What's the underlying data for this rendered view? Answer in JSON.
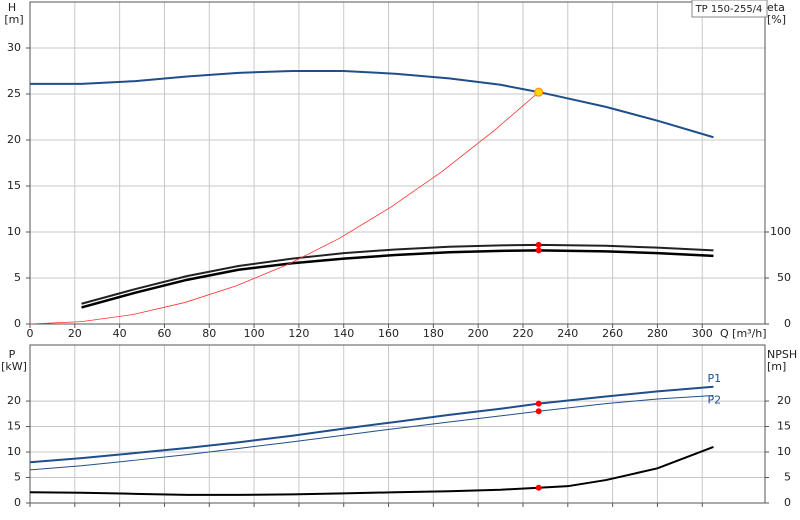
{
  "chart_data": [
    {
      "type": "line",
      "title": "TP 150-255/4",
      "y_label": "H",
      "y_unit": "[m]",
      "y2_label": "eta",
      "y2_unit": "[%]",
      "x_label": "Q [m³/h]",
      "xlim": [
        0,
        328
      ],
      "xticks": [
        0,
        20,
        40,
        60,
        80,
        100,
        120,
        140,
        160,
        180,
        200,
        220,
        240,
        260,
        280,
        300
      ],
      "ylim": [
        0,
        35
      ],
      "yticks": [
        0,
        5,
        10,
        15,
        20,
        25,
        30
      ],
      "y2lim": [
        0,
        350
      ],
      "y2ticks": [
        0,
        50,
        100
      ],
      "grid": true,
      "series": [
        {
          "color": "#1f4e8c",
          "width": 2,
          "x": [
            0,
            23,
            47,
            70,
            93,
            117,
            140,
            163,
            187,
            210,
            227,
            233,
            257,
            280,
            305
          ],
          "values": [
            26.1,
            26.1,
            26.4,
            26.9,
            27.3,
            27.5,
            27.5,
            27.2,
            26.7,
            26.0,
            25.2,
            24.9,
            23.6,
            22.1,
            20.3
          ]
        },
        {
          "color": "#222222",
          "width": 2,
          "axis": "y2",
          "x": [
            23,
            47,
            70,
            93,
            117,
            140,
            163,
            187,
            210,
            227,
            257,
            280,
            305
          ],
          "values": [
            22,
            38,
            52,
            63,
            71,
            77,
            81,
            84,
            85.5,
            86,
            85,
            83,
            80
          ]
        },
        {
          "color": "#000000",
          "width": 2.5,
          "axis": "y2",
          "x": [
            23,
            47,
            70,
            93,
            117,
            140,
            163,
            187,
            210,
            227,
            257,
            280,
            305
          ],
          "values": [
            18,
            34,
            48,
            59,
            66,
            71,
            75,
            78,
            79.5,
            80,
            79,
            77,
            74
          ]
        },
        {
          "color": "#ff3030",
          "width": 0.8,
          "x": [
            0,
            23,
            46,
            69,
            92,
            115,
            138,
            161,
            184,
            207,
            227
          ],
          "values": [
            0,
            0.26,
            1.03,
            2.33,
            4.14,
            6.47,
            9.3,
            12.7,
            16.6,
            21.0,
            25.2
          ]
        }
      ],
      "markers": [
        {
          "x": 227,
          "y": 25.2,
          "color": "#ffd700"
        },
        {
          "x": 227,
          "y": 86,
          "axis": "y2",
          "color": "#ff0000"
        },
        {
          "x": 227,
          "y": 80,
          "axis": "y2",
          "color": "#ff0000"
        }
      ]
    },
    {
      "type": "line",
      "y_label": "P",
      "y_unit": "[kW]",
      "y2_label": "NPSH",
      "y2_unit": "[m]",
      "xlim": [
        0,
        328
      ],
      "ylim": [
        0,
        31
      ],
      "yticks": [
        0,
        5,
        10,
        15,
        20
      ],
      "y2lim": [
        0,
        31
      ],
      "y2ticks": [
        0,
        5,
        10,
        15,
        20
      ],
      "grid": true,
      "series": [
        {
          "name": "P1",
          "color": "#1f4e8c",
          "width": 2,
          "x": [
            0,
            23,
            47,
            70,
            93,
            117,
            140,
            163,
            187,
            210,
            227,
            257,
            280,
            305
          ],
          "values": [
            8,
            8.8,
            9.8,
            10.8,
            11.9,
            13.2,
            14.6,
            15.9,
            17.3,
            18.5,
            19.5,
            20.9,
            21.9,
            22.8
          ]
        },
        {
          "name": "P2",
          "color": "#1f4e8c",
          "width": 1,
          "x": [
            0,
            23,
            47,
            70,
            93,
            117,
            140,
            163,
            187,
            210,
            227,
            257,
            280,
            305
          ],
          "values": [
            6.5,
            7.3,
            8.4,
            9.5,
            10.7,
            12.0,
            13.3,
            14.6,
            15.9,
            17.1,
            18.0,
            19.5,
            20.4,
            21.1
          ]
        },
        {
          "color": "#000000",
          "width": 2,
          "axis": "y2",
          "x": [
            0,
            23,
            47,
            70,
            93,
            117,
            140,
            163,
            187,
            210,
            227,
            240,
            257,
            280,
            305
          ],
          "values": [
            2.1,
            2.0,
            1.8,
            1.6,
            1.6,
            1.7,
            1.9,
            2.1,
            2.3,
            2.6,
            3.0,
            3.3,
            4.5,
            6.8,
            11.0
          ]
        }
      ],
      "markers": [
        {
          "x": 227,
          "y": 19.5,
          "color": "#ff0000"
        },
        {
          "x": 227,
          "y": 18.0,
          "color": "#ff0000"
        },
        {
          "x": 227,
          "y": 3.0,
          "axis": "y2",
          "color": "#ff0000"
        }
      ]
    }
  ]
}
